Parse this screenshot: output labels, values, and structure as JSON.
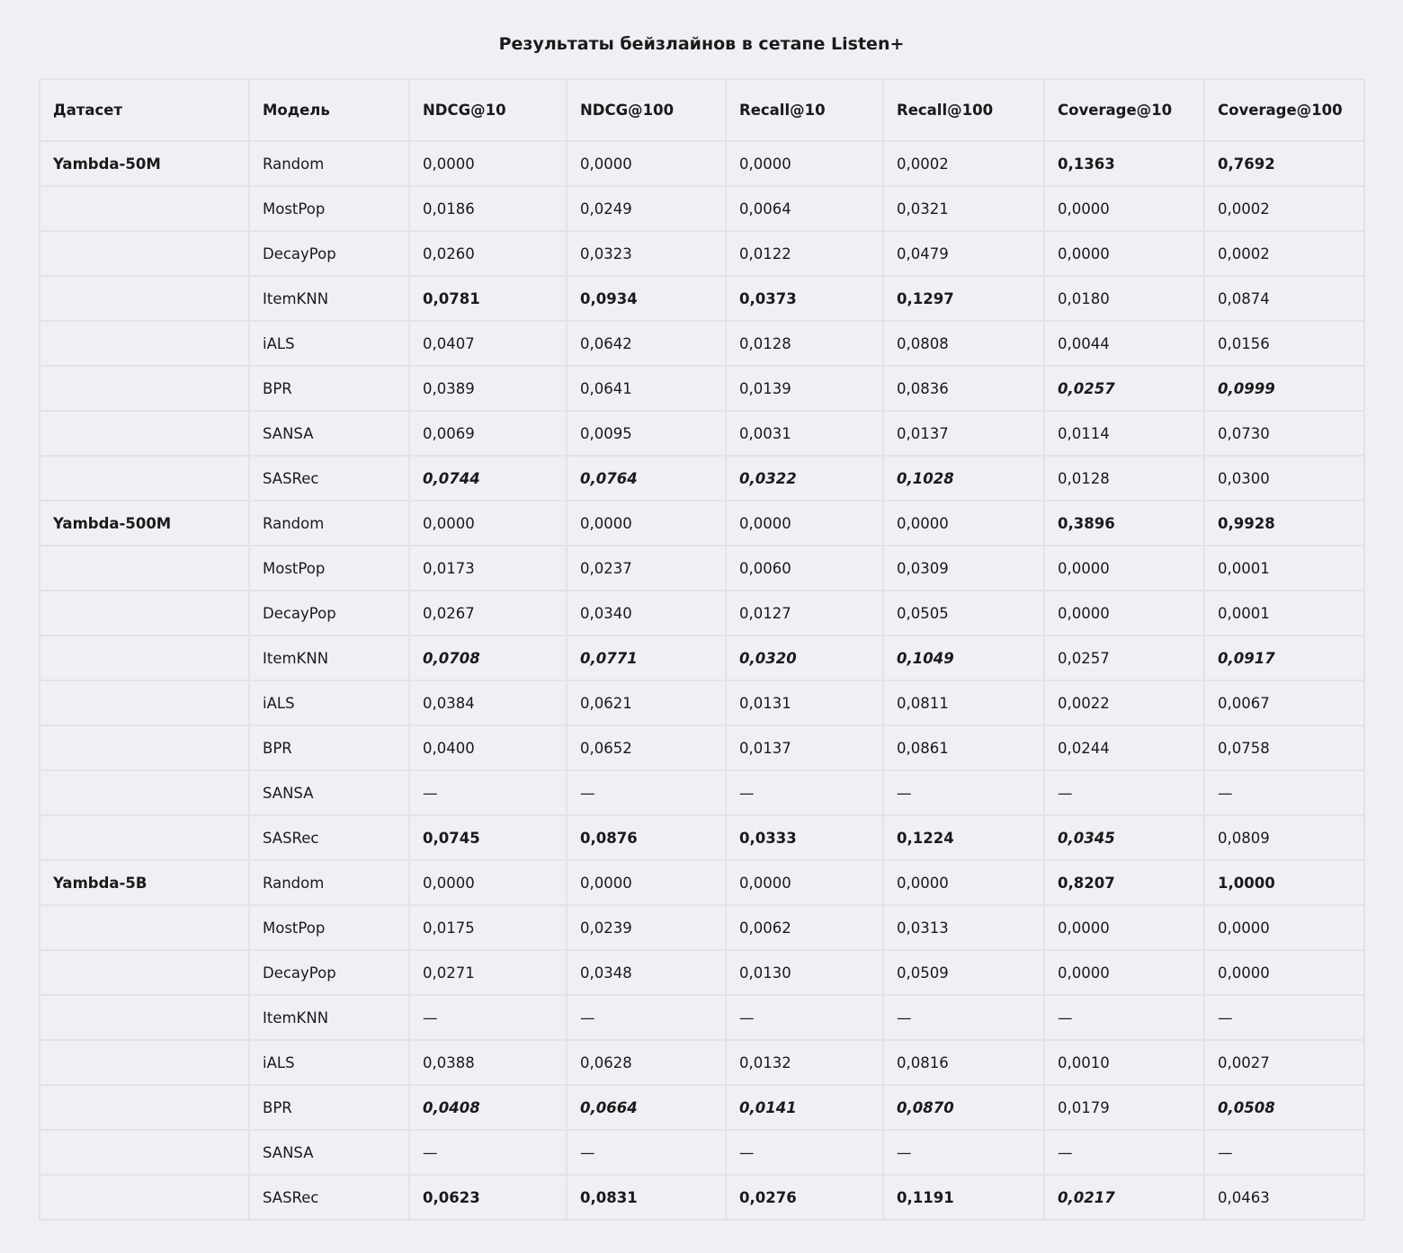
{
  "title": "Результаты бейзлайнов в сетапе Listen+",
  "headers": [
    "Датасет",
    "Модель",
    "NDCG@10",
    "NDCG@100",
    "Recall@10",
    "Recall@100",
    "Coverage@10",
    "Coverage@100"
  ],
  "groups": [
    {
      "dataset": "Yambda-50M",
      "rows": [
        {
          "model": "Random",
          "cells": [
            "0,0000",
            "0,0000",
            "0,0000",
            "0,0002",
            {
              "v": "0,1363",
              "s": "b"
            },
            {
              "v": "0,7692",
              "s": "b"
            }
          ]
        },
        {
          "model": "MostPop",
          "cells": [
            "0,0186",
            "0,0249",
            "0,0064",
            "0,0321",
            "0,0000",
            "0,0002"
          ]
        },
        {
          "model": "DecayPop",
          "cells": [
            "0,0260",
            "0,0323",
            "0,0122",
            "0,0479",
            "0,0000",
            "0,0002"
          ]
        },
        {
          "model": "ItemKNN",
          "cells": [
            {
              "v": "0,0781",
              "s": "b"
            },
            {
              "v": "0,0934",
              "s": "b"
            },
            {
              "v": "0,0373",
              "s": "b"
            },
            {
              "v": "0,1297",
              "s": "b"
            },
            "0,0180",
            "0,0874"
          ]
        },
        {
          "model": "iALS",
          "cells": [
            "0,0407",
            "0,0642",
            "0,0128",
            "0,0808",
            "0,0044",
            "0,0156"
          ]
        },
        {
          "model": "BPR",
          "cells": [
            "0,0389",
            "0,0641",
            "0,0139",
            "0,0836",
            {
              "v": "0,0257",
              "s": "bi"
            },
            {
              "v": "0,0999",
              "s": "bi"
            }
          ]
        },
        {
          "model": "SANSA",
          "cells": [
            "0,0069",
            "0,0095",
            "0,0031",
            "0,0137",
            "0,0114",
            "0,0730"
          ]
        },
        {
          "model": "SASRec",
          "cells": [
            {
              "v": "0,0744",
              "s": "bi"
            },
            {
              "v": "0,0764",
              "s": "bi"
            },
            {
              "v": "0,0322",
              "s": "bi"
            },
            {
              "v": "0,1028",
              "s": "bi"
            },
            "0,0128",
            "0,0300"
          ]
        }
      ]
    },
    {
      "dataset": "Yambda-500M",
      "rows": [
        {
          "model": "Random",
          "cells": [
            "0,0000",
            "0,0000",
            "0,0000",
            "0,0000",
            {
              "v": "0,3896",
              "s": "b"
            },
            {
              "v": "0,9928",
              "s": "b"
            }
          ]
        },
        {
          "model": "MostPop",
          "cells": [
            "0,0173",
            "0,0237",
            "0,0060",
            "0,0309",
            "0,0000",
            "0,0001"
          ]
        },
        {
          "model": "DecayPop",
          "cells": [
            "0,0267",
            "0,0340",
            "0,0127",
            "0,0505",
            "0,0000",
            "0,0001"
          ]
        },
        {
          "model": "ItemKNN",
          "cells": [
            {
              "v": "0,0708",
              "s": "bi"
            },
            {
              "v": "0,0771",
              "s": "bi"
            },
            {
              "v": "0,0320",
              "s": "bi"
            },
            {
              "v": "0,1049",
              "s": "bi"
            },
            "0,0257",
            {
              "v": "0,0917",
              "s": "bi"
            }
          ]
        },
        {
          "model": "iALS",
          "cells": [
            "0,0384",
            "0,0621",
            "0,0131",
            "0,0811",
            "0,0022",
            "0,0067"
          ]
        },
        {
          "model": "BPR",
          "cells": [
            "0,0400",
            "0,0652",
            "0,0137",
            "0,0861",
            "0,0244",
            "0,0758"
          ]
        },
        {
          "model": "SANSA",
          "cells": [
            "—",
            "—",
            "—",
            "—",
            "—",
            "—"
          ]
        },
        {
          "model": "SASRec",
          "cells": [
            {
              "v": "0,0745",
              "s": "b"
            },
            {
              "v": "0,0876",
              "s": "b"
            },
            {
              "v": "0,0333",
              "s": "b"
            },
            {
              "v": "0,1224",
              "s": "b"
            },
            {
              "v": "0,0345",
              "s": "bi"
            },
            "0,0809"
          ]
        }
      ]
    },
    {
      "dataset": "Yambda-5B",
      "rows": [
        {
          "model": "Random",
          "cells": [
            "0,0000",
            "0,0000",
            "0,0000",
            "0,0000",
            {
              "v": "0,8207",
              "s": "b"
            },
            {
              "v": "1,0000",
              "s": "b"
            }
          ]
        },
        {
          "model": "MostPop",
          "cells": [
            "0,0175",
            "0,0239",
            "0,0062",
            "0,0313",
            "0,0000",
            "0,0000"
          ]
        },
        {
          "model": "DecayPop",
          "cells": [
            "0,0271",
            "0,0348",
            "0,0130",
            "0,0509",
            "0,0000",
            "0,0000"
          ]
        },
        {
          "model": "ItemKNN",
          "cells": [
            "—",
            "—",
            "—",
            "—",
            "—",
            "—"
          ]
        },
        {
          "model": "iALS",
          "cells": [
            "0,0388",
            "0,0628",
            "0,0132",
            "0,0816",
            "0,0010",
            "0,0027"
          ]
        },
        {
          "model": "BPR",
          "cells": [
            {
              "v": "0,0408",
              "s": "bi"
            },
            {
              "v": "0,0664",
              "s": "bi"
            },
            {
              "v": "0,0141",
              "s": "bi"
            },
            {
              "v": "0,0870",
              "s": "bi"
            },
            "0,0179",
            {
              "v": "0,0508",
              "s": "bi"
            }
          ]
        },
        {
          "model": "SANSA",
          "cells": [
            "—",
            "—",
            "—",
            "—",
            "—",
            "—"
          ]
        },
        {
          "model": "SASRec",
          "cells": [
            {
              "v": "0,0623",
              "s": "b"
            },
            {
              "v": "0,0831",
              "s": "b"
            },
            {
              "v": "0,0276",
              "s": "b"
            },
            {
              "v": "0,1191",
              "s": "b"
            },
            {
              "v": "0,0217",
              "s": "bi"
            },
            "0,0463"
          ]
        }
      ]
    }
  ]
}
